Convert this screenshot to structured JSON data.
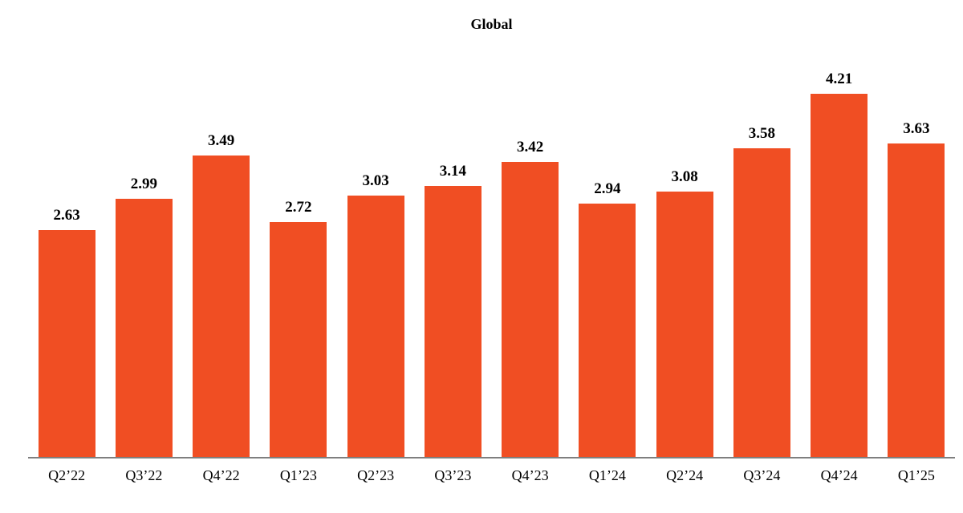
{
  "chart_data": {
    "type": "bar",
    "title": "Global",
    "categories": [
      "Q2’22",
      "Q3’22",
      "Q4’22",
      "Q1’23",
      "Q2’23",
      "Q3’23",
      "Q4’23",
      "Q1’24",
      "Q2’24",
      "Q3’24",
      "Q4’24",
      "Q1’25"
    ],
    "values": [
      2.63,
      2.99,
      3.49,
      2.72,
      3.03,
      3.14,
      3.42,
      2.94,
      3.08,
      3.58,
      4.21,
      3.63
    ],
    "value_labels": [
      "2.63",
      "2.99",
      "3.49",
      "2.72",
      "3.03",
      "3.14",
      "3.42",
      "2.94",
      "3.08",
      "3.58",
      "4.21",
      "3.63"
    ],
    "xlabel": "",
    "ylabel": "",
    "ylim": [
      0,
      4.5
    ],
    "grid": false,
    "legend": false,
    "bar_color": "#F04E23",
    "axis_line_color": "#7F7F7F",
    "text_color": "#000000"
  }
}
